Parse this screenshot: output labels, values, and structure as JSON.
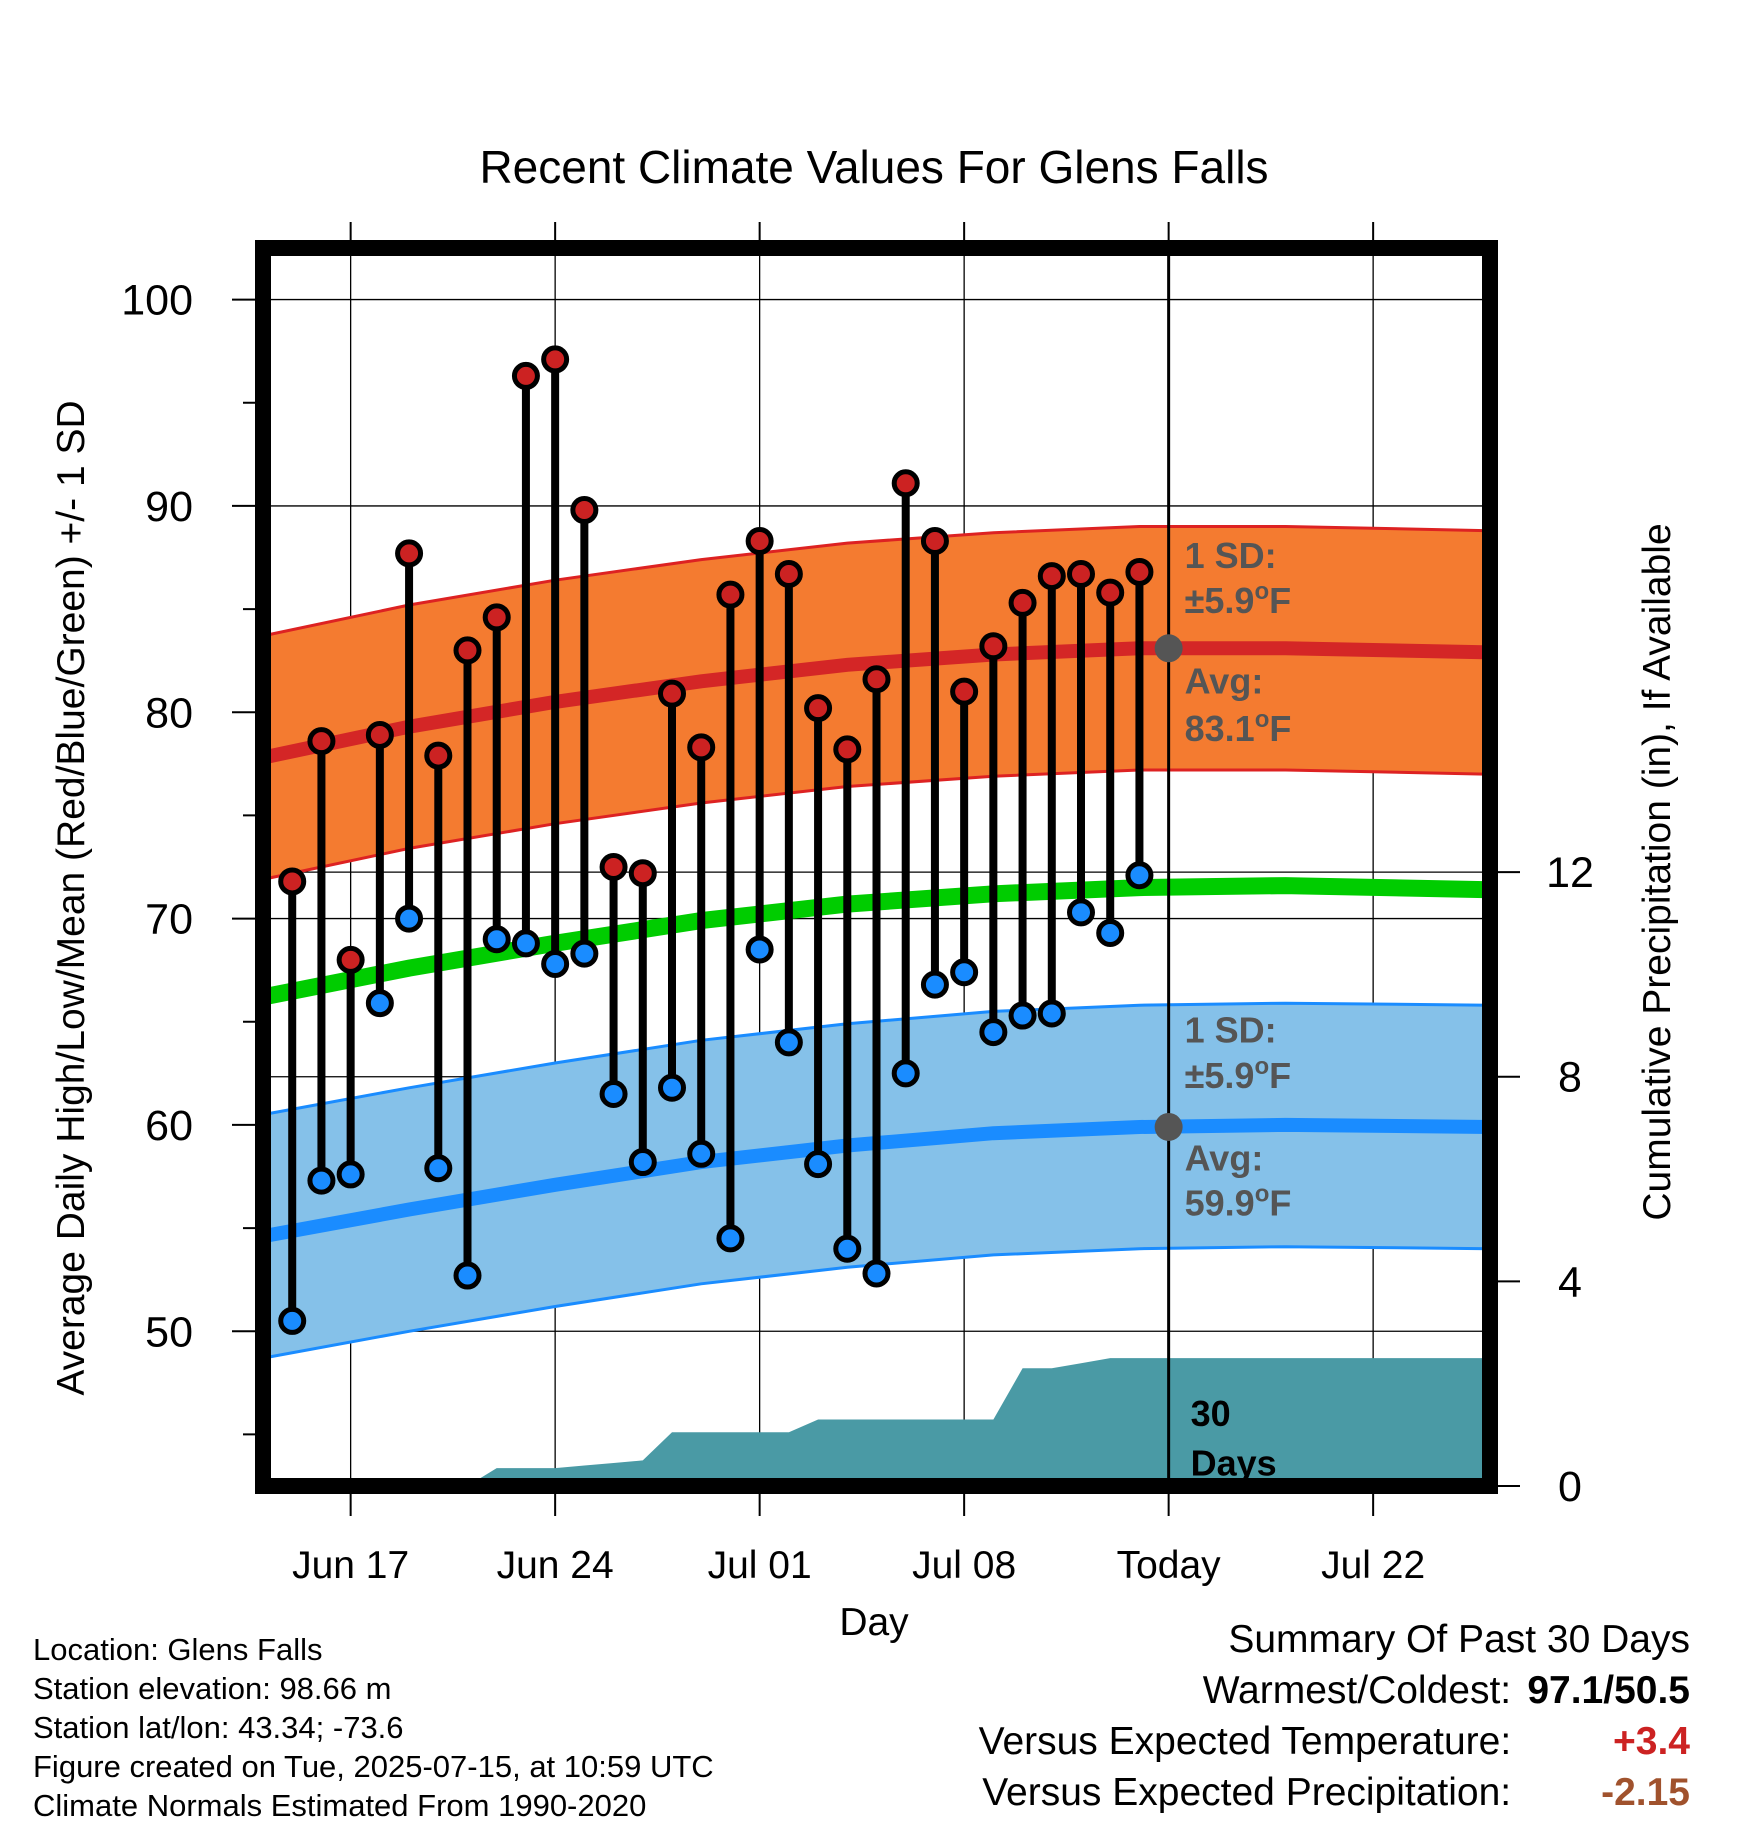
{
  "chart_data": {
    "type": "line",
    "title": "Recent Climate Values For Glens Falls",
    "xlabel": "Day",
    "ylabel": "Average Daily High/Low/Mean (Red/Blue/Green) +/- 1 SD",
    "y2label": "Cumulative Precipitation (in), If Available",
    "x_range": [
      "2025-06-14",
      "2025-07-26"
    ],
    "ylim": [
      42.5,
      102.5
    ],
    "y_ticks": [
      "50",
      "60",
      "70",
      "80",
      "90",
      "100"
    ],
    "y2lim": [
      0,
      24.2
    ],
    "y2_ticks": [
      "0",
      "4",
      "8",
      "12"
    ],
    "x_ticks": [
      {
        "date": "2025-06-17",
        "label": "Jun 17"
      },
      {
        "date": "2025-06-24",
        "label": "Jun 24"
      },
      {
        "date": "2025-07-01",
        "label": "Jul 01"
      },
      {
        "date": "2025-07-08",
        "label": "Jul 08"
      },
      {
        "date": "2025-07-15",
        "label": "Today"
      },
      {
        "date": "2025-07-22",
        "label": "Jul 22"
      }
    ],
    "grid": true,
    "today": "2025-07-15",
    "colors": {
      "high_point": "#cc2222",
      "low_point": "#1a8cff",
      "high_band": "#f47b30",
      "high_band_edge": "#dd2222",
      "high_avg": "#d42626",
      "low_band": "#85c1e9",
      "low_band_edge": "#1a8cff",
      "low_avg": "#1a8cff",
      "mean_line": "#00cc00",
      "precip": "#4a9aa5",
      "annot": "#555555",
      "warm": "#cc2222",
      "dry": "#a0522d"
    },
    "daily": {
      "dates": [
        "2025-06-15",
        "2025-06-16",
        "2025-06-17",
        "2025-06-18",
        "2025-06-19",
        "2025-06-20",
        "2025-06-21",
        "2025-06-22",
        "2025-06-23",
        "2025-06-24",
        "2025-06-25",
        "2025-06-26",
        "2025-06-27",
        "2025-06-28",
        "2025-06-29",
        "2025-06-30",
        "2025-07-01",
        "2025-07-02",
        "2025-07-03",
        "2025-07-04",
        "2025-07-05",
        "2025-07-06",
        "2025-07-07",
        "2025-07-08",
        "2025-07-09",
        "2025-07-10",
        "2025-07-11",
        "2025-07-12",
        "2025-07-13",
        "2025-07-14"
      ],
      "high": [
        71.8,
        78.6,
        68.0,
        78.9,
        87.7,
        77.9,
        83.0,
        84.6,
        96.3,
        97.1,
        89.8,
        72.5,
        72.2,
        80.9,
        78.3,
        85.7,
        88.3,
        86.7,
        80.2,
        78.2,
        81.6,
        91.1,
        88.3,
        81.0,
        83.2,
        85.3,
        86.6,
        86.7,
        85.8,
        86.8
      ],
      "low": [
        50.5,
        57.3,
        57.6,
        65.9,
        70.0,
        57.9,
        52.7,
        69.0,
        68.8,
        67.8,
        68.3,
        61.5,
        58.2,
        61.8,
        58.6,
        54.5,
        68.5,
        64.0,
        58.1,
        54.0,
        52.8,
        62.5,
        66.8,
        67.4,
        64.5,
        65.3,
        65.4,
        70.3,
        69.3,
        72.1
      ]
    },
    "normals": {
      "dates": [
        "2025-06-14",
        "2025-06-19",
        "2025-06-24",
        "2025-06-29",
        "2025-07-04",
        "2025-07-09",
        "2025-07-14",
        "2025-07-19",
        "2025-07-26"
      ],
      "high_avg": [
        77.8,
        79.3,
        80.5,
        81.5,
        82.3,
        82.8,
        83.1,
        83.1,
        82.9
      ],
      "high_sd": 5.9,
      "low_avg": [
        54.6,
        55.9,
        57.1,
        58.2,
        59.0,
        59.6,
        59.9,
        60.0,
        59.9
      ],
      "low_sd": 5.9,
      "mean_avg": [
        66.2,
        67.6,
        68.8,
        69.9,
        70.7,
        71.2,
        71.5,
        71.6,
        71.4
      ]
    },
    "precip_cumulative": {
      "dates": [
        "2025-06-14",
        "2025-06-21",
        "2025-06-22",
        "2025-06-23",
        "2025-06-24",
        "2025-06-25",
        "2025-06-26",
        "2025-06-27",
        "2025-06-28",
        "2025-06-29",
        "2025-06-30",
        "2025-07-01",
        "2025-07-02",
        "2025-07-03",
        "2025-07-04",
        "2025-07-05",
        "2025-07-06",
        "2025-07-07",
        "2025-07-08",
        "2025-07-09",
        "2025-07-10",
        "2025-07-11",
        "2025-07-12",
        "2025-07-13",
        "2025-07-14",
        "2025-07-26"
      ],
      "values": [
        0,
        0,
        0.35,
        0.35,
        0.35,
        0.4,
        0.45,
        0.5,
        1.05,
        1.05,
        1.05,
        1.05,
        1.05,
        1.3,
        1.3,
        1.3,
        1.3,
        1.3,
        1.3,
        1.3,
        2.3,
        2.3,
        2.4,
        2.5,
        2.5,
        2.5
      ]
    },
    "annotations": {
      "high_sd_label": "1 SD:",
      "high_sd_value": "±5.9",
      "high_avg_label": "Avg:",
      "high_avg_value": "83.1",
      "low_sd_label": "1 SD:",
      "low_sd_value": "±5.9",
      "low_avg_label": "Avg:",
      "low_avg_value": "59.9",
      "degree_symbol": "o",
      "unit": "F",
      "precip_label_1": "30",
      "precip_label_2": "Days"
    }
  },
  "station_info": {
    "location": "Location: Glens Falls",
    "elevation": "Station elevation: 98.66 m",
    "latlon": "Station lat/lon: 43.34; -73.6",
    "created": "Figure created on Tue, 2025-07-15, at 10:59 UTC",
    "normals": "Climate Normals Estimated From 1990-2020"
  },
  "summary": {
    "title": "Summary Of Past 30 Days",
    "warmest_coldest_label": "Warmest/Coldest:",
    "warmest_coldest_value": "97.1/50.5",
    "temp_label": "Versus Expected Temperature:",
    "temp_value": "+3.4",
    "precip_label": "Versus Expected Precipitation:",
    "precip_value": "-2.15"
  }
}
